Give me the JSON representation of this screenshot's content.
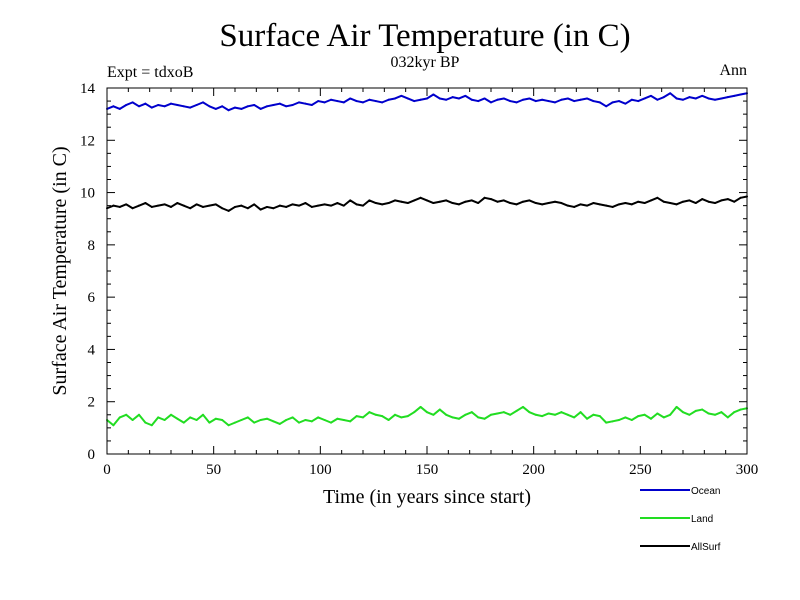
{
  "chart_data": {
    "type": "line",
    "title": "Surface Air Temperature (in C)",
    "subtitle": "032kyr BP",
    "left_note": "Expt = tdxoB",
    "right_note": "Ann",
    "xlabel": "Time (in years since start)",
    "ylabel": "Surface Air Temperature (in C)",
    "xlim": [
      0,
      300
    ],
    "ylim": [
      0,
      14
    ],
    "x_ticks": [
      0,
      50,
      100,
      150,
      200,
      250,
      300
    ],
    "y_ticks": [
      0,
      2,
      4,
      6,
      8,
      10,
      12,
      14
    ],
    "grid": false,
    "legend_position": "bottom-right, below plot",
    "x_step": 3,
    "x_start": 0,
    "series": [
      {
        "name": "Ocean",
        "color": "#0000cc",
        "values": [
          13.2,
          13.3,
          13.2,
          13.35,
          13.45,
          13.3,
          13.4,
          13.25,
          13.35,
          13.3,
          13.4,
          13.35,
          13.3,
          13.25,
          13.35,
          13.45,
          13.3,
          13.2,
          13.3,
          13.15,
          13.25,
          13.2,
          13.3,
          13.35,
          13.2,
          13.3,
          13.35,
          13.4,
          13.3,
          13.35,
          13.45,
          13.4,
          13.35,
          13.5,
          13.45,
          13.55,
          13.5,
          13.45,
          13.6,
          13.5,
          13.45,
          13.55,
          13.5,
          13.45,
          13.55,
          13.6,
          13.7,
          13.6,
          13.5,
          13.55,
          13.6,
          13.75,
          13.6,
          13.55,
          13.65,
          13.6,
          13.7,
          13.55,
          13.5,
          13.6,
          13.45,
          13.55,
          13.6,
          13.5,
          13.45,
          13.55,
          13.6,
          13.5,
          13.55,
          13.5,
          13.45,
          13.55,
          13.6,
          13.5,
          13.55,
          13.6,
          13.5,
          13.45,
          13.3,
          13.45,
          13.5,
          13.4,
          13.55,
          13.5,
          13.6,
          13.7,
          13.55,
          13.65,
          13.8,
          13.6,
          13.55,
          13.65,
          13.6,
          13.7,
          13.6,
          13.55,
          13.6,
          13.65,
          13.7,
          13.75,
          13.8
        ]
      },
      {
        "name": "Land",
        "color": "#22dd22",
        "values": [
          1.3,
          1.1,
          1.4,
          1.5,
          1.3,
          1.5,
          1.2,
          1.1,
          1.4,
          1.3,
          1.5,
          1.35,
          1.2,
          1.4,
          1.3,
          1.5,
          1.2,
          1.35,
          1.3,
          1.1,
          1.2,
          1.3,
          1.4,
          1.2,
          1.3,
          1.35,
          1.25,
          1.15,
          1.3,
          1.4,
          1.2,
          1.3,
          1.25,
          1.4,
          1.3,
          1.2,
          1.35,
          1.3,
          1.25,
          1.45,
          1.4,
          1.6,
          1.5,
          1.45,
          1.3,
          1.5,
          1.4,
          1.45,
          1.6,
          1.8,
          1.6,
          1.5,
          1.7,
          1.5,
          1.4,
          1.35,
          1.5,
          1.6,
          1.4,
          1.35,
          1.5,
          1.55,
          1.6,
          1.5,
          1.65,
          1.8,
          1.6,
          1.5,
          1.45,
          1.55,
          1.5,
          1.6,
          1.5,
          1.4,
          1.6,
          1.35,
          1.5,
          1.45,
          1.2,
          1.25,
          1.3,
          1.4,
          1.3,
          1.45,
          1.5,
          1.35,
          1.55,
          1.4,
          1.5,
          1.8,
          1.6,
          1.5,
          1.65,
          1.7,
          1.55,
          1.5,
          1.6,
          1.4,
          1.6,
          1.7,
          1.75
        ]
      },
      {
        "name": "AllSurf",
        "color": "#000000",
        "values": [
          9.4,
          9.5,
          9.45,
          9.55,
          9.4,
          9.5,
          9.6,
          9.45,
          9.5,
          9.55,
          9.45,
          9.6,
          9.5,
          9.4,
          9.55,
          9.45,
          9.5,
          9.55,
          9.4,
          9.3,
          9.45,
          9.5,
          9.4,
          9.55,
          9.35,
          9.45,
          9.4,
          9.5,
          9.45,
          9.55,
          9.5,
          9.6,
          9.45,
          9.5,
          9.55,
          9.5,
          9.6,
          9.5,
          9.7,
          9.55,
          9.5,
          9.7,
          9.6,
          9.55,
          9.6,
          9.7,
          9.65,
          9.6,
          9.7,
          9.8,
          9.7,
          9.6,
          9.65,
          9.7,
          9.6,
          9.55,
          9.65,
          9.7,
          9.6,
          9.8,
          9.75,
          9.65,
          9.7,
          9.6,
          9.55,
          9.65,
          9.7,
          9.6,
          9.55,
          9.6,
          9.65,
          9.6,
          9.5,
          9.45,
          9.55,
          9.5,
          9.6,
          9.55,
          9.5,
          9.45,
          9.55,
          9.6,
          9.55,
          9.65,
          9.6,
          9.7,
          9.8,
          9.65,
          9.6,
          9.55,
          9.65,
          9.7,
          9.6,
          9.75,
          9.65,
          9.6,
          9.7,
          9.75,
          9.65,
          9.8,
          9.85
        ]
      }
    ]
  }
}
